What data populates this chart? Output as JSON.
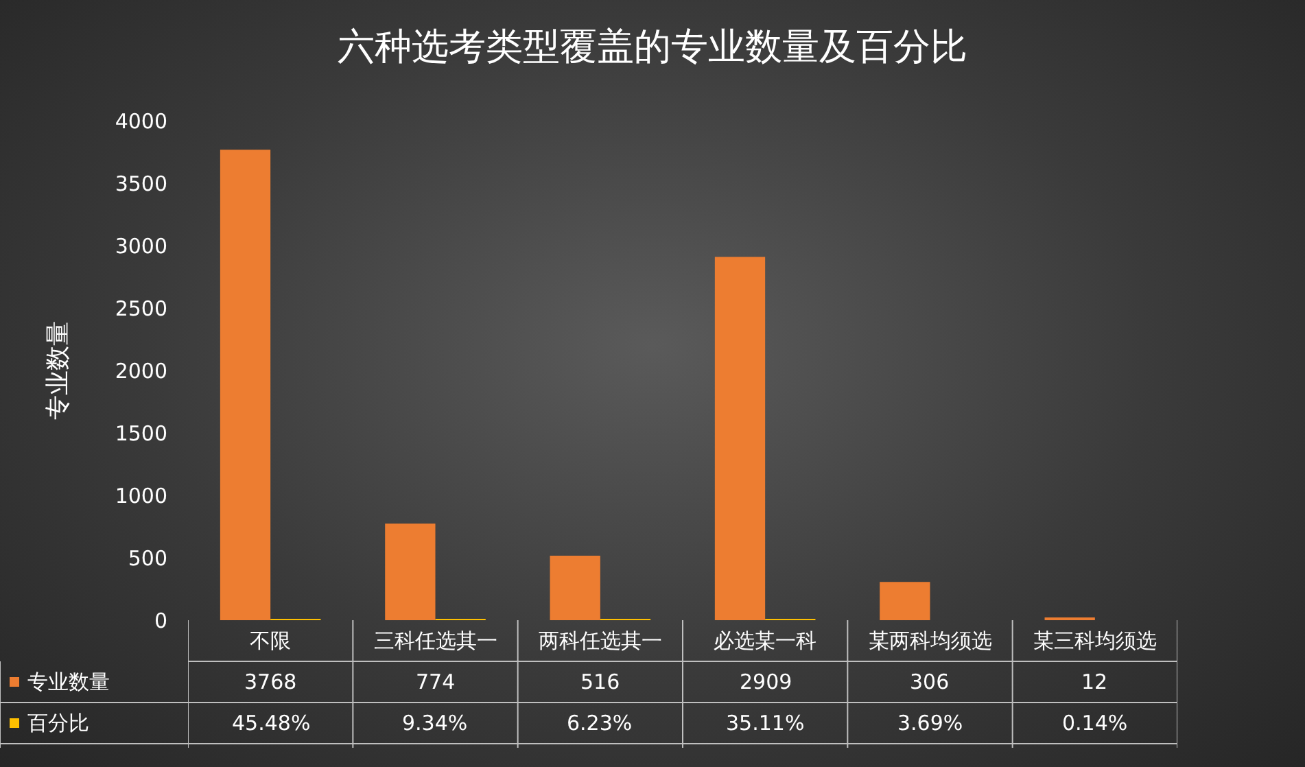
{
  "chart_data": {
    "type": "bar",
    "title": "六种选考类型覆盖的专业数量及百分比",
    "ylabel": "专业数量",
    "categories": [
      "不限",
      "三科任选其一",
      "两科任选其一",
      "必选某一科",
      "某两科均须选",
      "某三科均须选"
    ],
    "series": [
      {
        "name": "专业数量",
        "color": "#ed7d31",
        "values": [
          3768,
          774,
          516,
          2909,
          306,
          12
        ]
      },
      {
        "name": "百分比",
        "color": "#ffc000",
        "values": [
          0.4548,
          0.0934,
          0.0623,
          0.3511,
          0.0369,
          0.0014
        ],
        "value_labels": [
          "45.48%",
          "9.34%",
          "6.23%",
          "35.11%",
          "3.69%",
          "0.14%"
        ]
      }
    ],
    "ylim": [
      0,
      4000
    ],
    "yticks": [
      0,
      500,
      1000,
      1500,
      2000,
      2500,
      3000,
      3500,
      4000
    ],
    "grid": false,
    "legend": "bottom left",
    "data_labels": true
  }
}
